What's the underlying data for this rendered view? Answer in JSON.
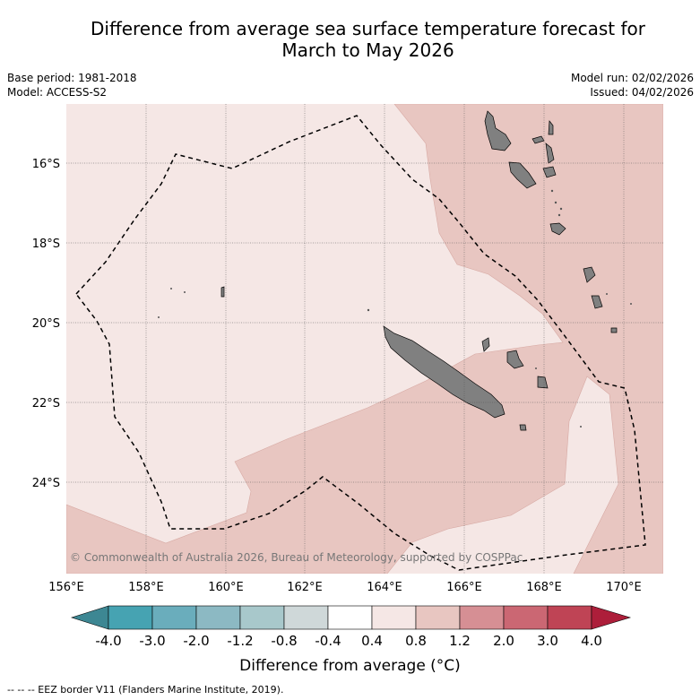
{
  "title": {
    "line1": "Difference from average sea surface temperature forecast for",
    "line2": "March to May 2026"
  },
  "meta": {
    "base_period": "Base period: 1981-2018",
    "model": "Model: ACCESS-S2",
    "model_run": "Model run: 02/02/2026",
    "issued": "Issued: 04/02/2026"
  },
  "axes": {
    "x_ticks": [
      "156°E",
      "158°E",
      "160°E",
      "162°E",
      "164°E",
      "166°E",
      "168°E",
      "170°E"
    ],
    "y_ticks": [
      "16°S",
      "18°S",
      "20°S",
      "22°S",
      "24°S"
    ]
  },
  "copyright": "© Commonwealth of Australia 2026, Bureau of Meteorology, supported by COSPPac",
  "colorbar": {
    "tick_labels": [
      "-4.0",
      "-3.0",
      "-2.0",
      "-1.2",
      "-0.8",
      "-0.4",
      "0.4",
      "0.8",
      "1.2",
      "2.0",
      "3.0",
      "4.0"
    ],
    "colors": [
      "#46a3b2",
      "#6aadbc",
      "#8cb9c3",
      "#a8c8cb",
      "#cfd8d9",
      "#ffffff",
      "#f5e7e5",
      "#e8c6c1",
      "#d68f94",
      "#cb6773",
      "#bf4455"
    ],
    "under_color": "#3d8793",
    "over_color": "#ad1e3a",
    "label": "Difference from average (°C)"
  },
  "map_colors": {
    "anomaly_low": "#f5e7e5",
    "anomaly_mid": "#e8c6c1",
    "land": "#808080"
  },
  "legend": "--  --  -- EEZ border V11 (Flanders Marine Institute, 2019)."
}
